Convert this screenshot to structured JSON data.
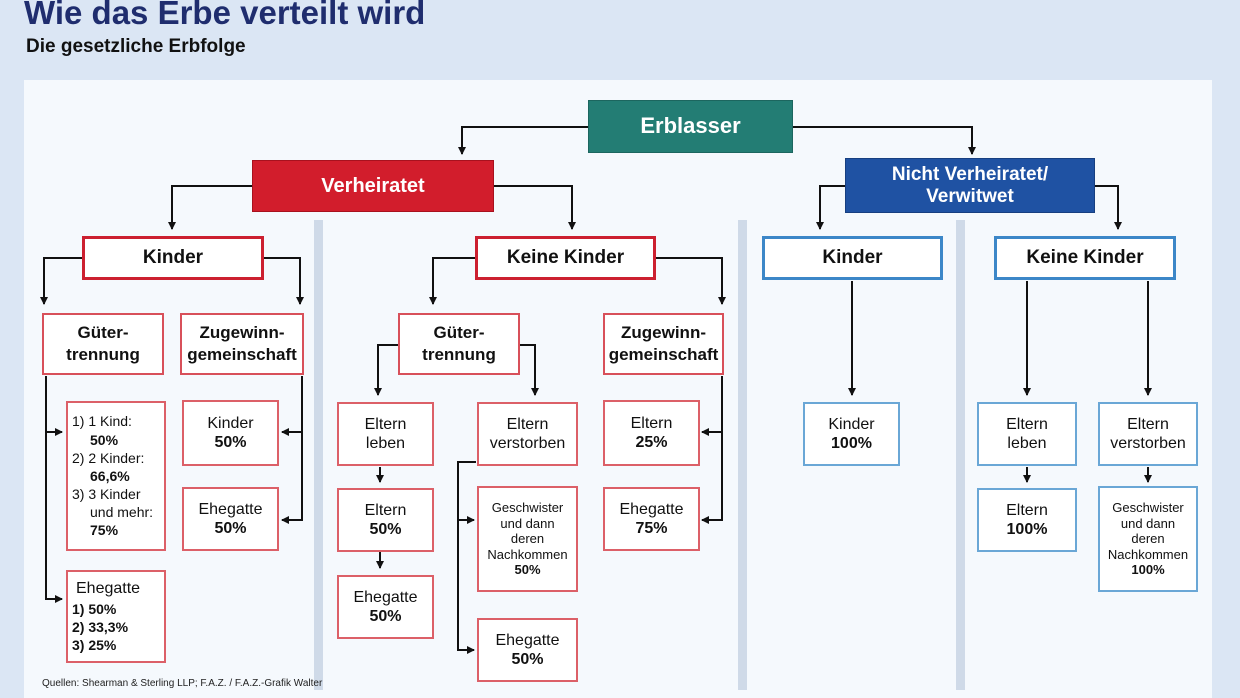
{
  "title": "Wie das Erbe verteilt wird",
  "subtitle": "Die gesetzliche Erbfolge",
  "root": "Erblasser",
  "married": {
    "label": "Verheiratet",
    "kinder": {
      "label": "Kinder",
      "gt": {
        "label1": "Güter-",
        "label2": "trennung",
        "children": [
          {
            "line": "1) 1 Kind:",
            "pct": "50%"
          },
          {
            "line": "2) 2 Kinder:",
            "pct": "66,6%"
          },
          {
            "line": "3) 3 Kinder",
            "line2": "und mehr:",
            "pct": "75%"
          }
        ],
        "spouse_label": "Ehegatte",
        "spouse": [
          "1) 50%",
          "2) 33,3%",
          "3) 25%"
        ]
      },
      "zg": {
        "label1": "Zugewinn-",
        "label2": "gemeinschaft",
        "kinder_label": "Kinder",
        "kinder_pct": "50%",
        "ehegatte_label": "Ehegatte",
        "ehegatte_pct": "50%"
      }
    },
    "keine": {
      "label": "Keine Kinder",
      "gt": {
        "label1": "Güter-",
        "label2": "trennung",
        "leben1": "Eltern",
        "leben2": "leben",
        "eltern_label": "Eltern",
        "eltern_pct": "50%",
        "ehegatte_label": "Ehegatte",
        "ehegatte_pct": "50%",
        "verst1": "Eltern",
        "verst2": "verstorben",
        "geschw": [
          "Geschwister",
          "und dann",
          "deren",
          "Nachkommen"
        ],
        "geschw_pct": "50%",
        "ehegatte2_label": "Ehegatte",
        "ehegatte2_pct": "50%"
      },
      "zg": {
        "label1": "Zugewinn-",
        "label2": "gemeinschaft",
        "eltern_label": "Eltern",
        "eltern_pct": "25%",
        "ehegatte_label": "Ehegatte",
        "ehegatte_pct": "75%"
      }
    }
  },
  "single": {
    "label1": "Nicht Verheiratet/",
    "label2": "Verwitwet",
    "kinder": {
      "label": "Kinder",
      "leaf_label": "Kinder",
      "leaf_pct": "100%"
    },
    "keine": {
      "label": "Keine Kinder",
      "leben1": "Eltern",
      "leben2": "leben",
      "eltern_label": "Eltern",
      "eltern_pct": "100%",
      "verst1": "Eltern",
      "verst2": "verstorben",
      "geschw": [
        "Geschwister",
        "und dann",
        "deren",
        "Nachkommen"
      ],
      "geschw_pct": "100%"
    }
  },
  "source": "Quellen: Shearman & Sterling LLP; F.A.Z. / F.A.Z.-Grafik Walter",
  "colors": {
    "teal": "#237d74",
    "red": "#d21d2c",
    "blue": "#1f52a3",
    "title": "#1f2d6e"
  }
}
